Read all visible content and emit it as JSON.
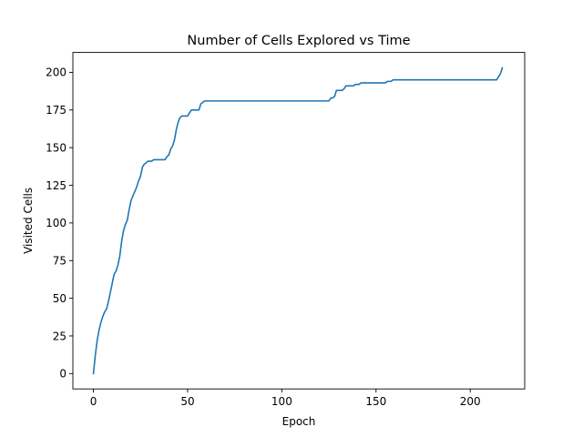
{
  "chart_data": {
    "type": "line",
    "title": "Number of Cells Explored vs Time",
    "xlabel": "Epoch",
    "ylabel": "Visited Cells",
    "xlim": [
      -10.9,
      228.9
    ],
    "ylim": [
      -10.2,
      213.2
    ],
    "xticks": [
      0,
      50,
      100,
      150,
      200
    ],
    "yticks": [
      0,
      25,
      50,
      75,
      100,
      125,
      150,
      175,
      200
    ],
    "grid": false,
    "legend": "none",
    "series": [
      {
        "color": "#1f77b4",
        "x": [
          0,
          1,
          2,
          3,
          4,
          5,
          6,
          7,
          8,
          9,
          10,
          11,
          12,
          13,
          14,
          15,
          16,
          17,
          18,
          19,
          20,
          21,
          22,
          23,
          24,
          25,
          26,
          27,
          28,
          29,
          30,
          31,
          32,
          33,
          34,
          35,
          36,
          37,
          38,
          39,
          40,
          41,
          42,
          43,
          44,
          45,
          46,
          47,
          48,
          49,
          50,
          51,
          52,
          53,
          54,
          55,
          56,
          57,
          58,
          59,
          60,
          124,
          125,
          126,
          127,
          128,
          129,
          130,
          131,
          132,
          133,
          134,
          135,
          136,
          137,
          138,
          139,
          140,
          141,
          142,
          143,
          144,
          150,
          155,
          156,
          157,
          158,
          159,
          160,
          210,
          214,
          215,
          216,
          217
        ],
        "y": [
          0,
          12,
          22,
          29,
          34,
          38,
          41,
          43,
          48,
          54,
          60,
          66,
          68,
          72,
          78,
          88,
          95,
          99,
          102,
          109,
          115,
          118,
          121,
          124,
          128,
          131,
          137,
          139,
          140,
          141,
          141,
          141,
          142,
          142,
          142,
          142,
          142,
          142,
          142,
          144,
          145,
          149,
          151,
          155,
          162,
          167,
          170,
          171,
          171,
          171,
          171,
          173,
          175,
          175,
          175,
          175,
          175,
          179,
          180,
          181,
          181,
          181,
          181,
          183,
          183,
          184,
          188,
          188,
          188,
          188,
          189,
          191,
          191,
          191,
          191,
          191,
          192,
          192,
          192,
          193,
          193,
          193,
          193,
          193,
          194,
          194,
          194,
          195,
          195,
          195,
          195,
          197,
          199,
          203
        ]
      }
    ]
  }
}
